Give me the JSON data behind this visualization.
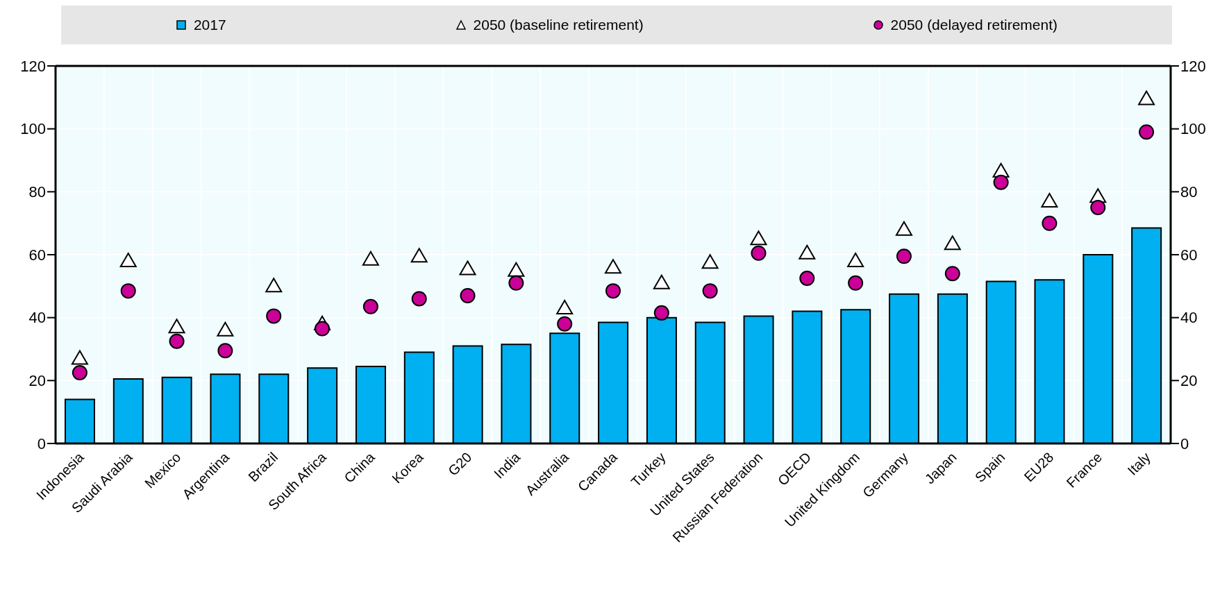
{
  "chart_data": {
    "type": "bar",
    "categories": [
      "Indonesia",
      "Saudi Arabia",
      "Mexico",
      "Argentina",
      "Brazil",
      "South Africa",
      "China",
      "Korea",
      "G20",
      "India",
      "Australia",
      "Canada",
      "Turkey",
      "United States",
      "Russian Federation",
      "OECD",
      "United Kingdom",
      "Germany",
      "Japan",
      "Spain",
      "EU28",
      "France",
      "Italy"
    ],
    "series": [
      {
        "name": "2017",
        "color": "#00b0f0",
        "marker": "square",
        "values": [
          14,
          20.5,
          21,
          22,
          22,
          24,
          24.5,
          29,
          31,
          31.5,
          35,
          38.5,
          40,
          38.5,
          40.5,
          42,
          42.5,
          47.5,
          47.5,
          51.5,
          52,
          60,
          68.5
        ]
      },
      {
        "name": "2050 (baseline retirement)",
        "type": "scatter",
        "color": "#ffffff",
        "marker": "triangle",
        "values": [
          27,
          58,
          37,
          36,
          50,
          38,
          58.5,
          59.5,
          55.5,
          55,
          43,
          56,
          51,
          57.5,
          65,
          60.5,
          58,
          68,
          63.5,
          86.5,
          77,
          78.5,
          109.5
        ]
      },
      {
        "name": "2050 (delayed retirement)",
        "type": "scatter",
        "color": "#cc0099",
        "marker": "circle",
        "values": [
          22.5,
          48.5,
          32.5,
          29.5,
          40.5,
          36.5,
          43.5,
          46,
          47,
          51,
          38,
          48.5,
          41.5,
          48.5,
          60.5,
          52.5,
          51,
          59.5,
          54,
          83,
          70,
          75,
          99
        ]
      }
    ],
    "ylim": [
      0,
      120
    ],
    "yticks": [
      0,
      20,
      40,
      60,
      80,
      100,
      120
    ],
    "y2lim": [
      0,
      120
    ],
    "y2ticks": [
      0,
      20,
      40,
      60,
      80,
      100,
      120
    ],
    "grid": true,
    "legend": "top"
  }
}
